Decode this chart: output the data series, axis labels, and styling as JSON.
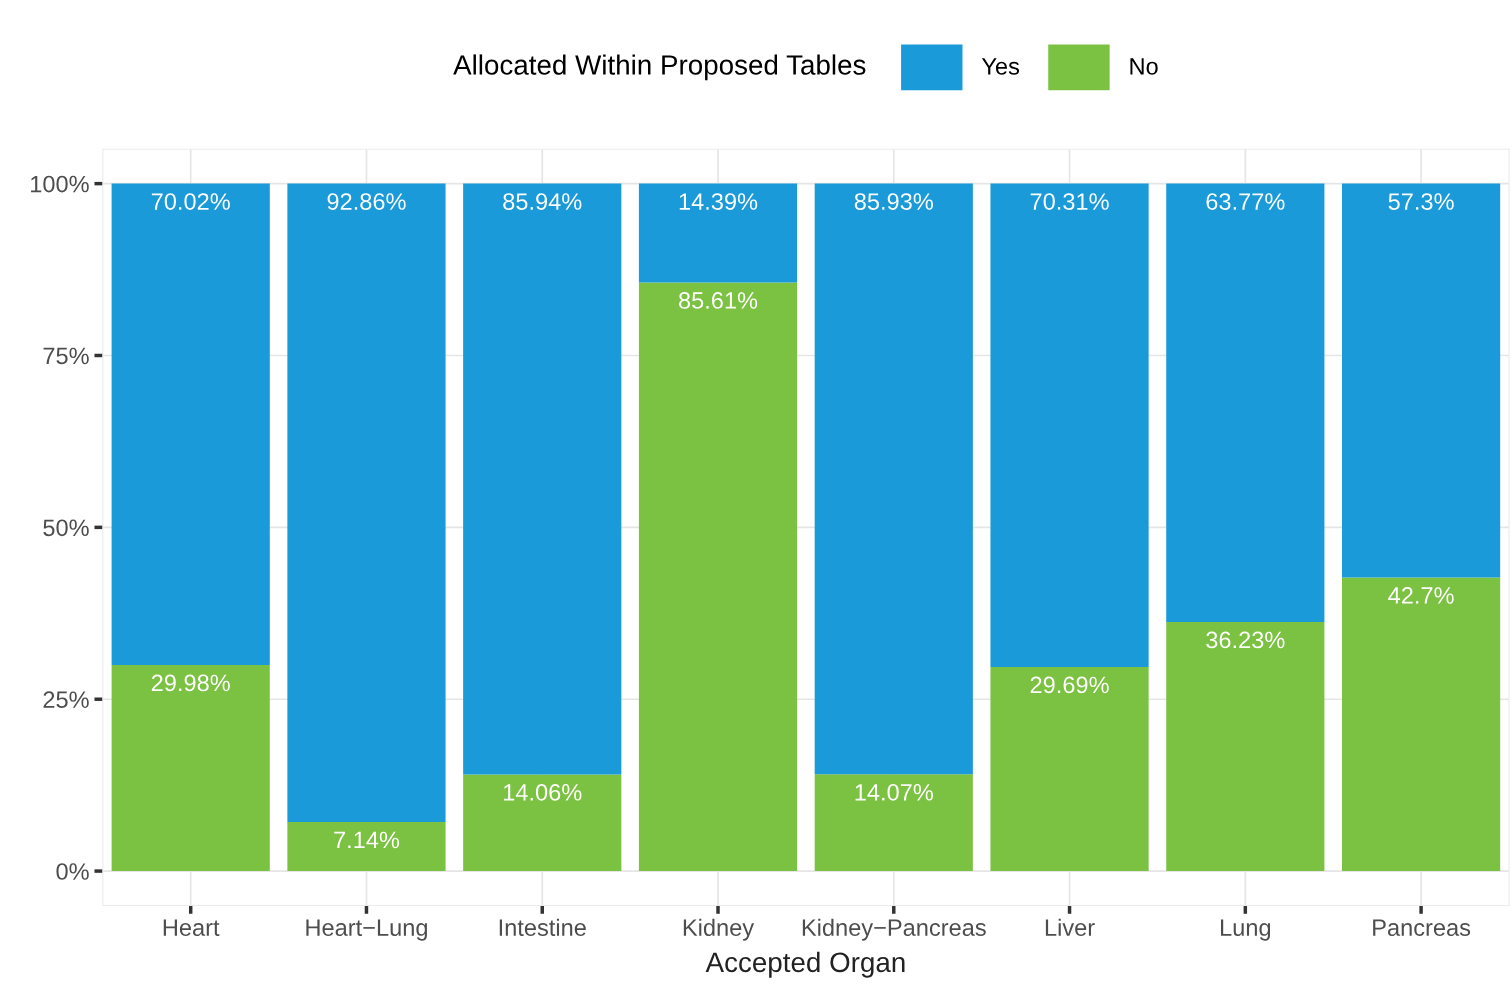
{
  "chart_data": {
    "type": "bar",
    "stacked": true,
    "xlabel": "Accepted Organ",
    "legend_title": "Allocated Within Proposed Tables",
    "legend": "top",
    "grid": true,
    "categories": [
      "Heart",
      "Heart−Lung",
      "Intestine",
      "Kidney",
      "Kidney−Pancreas",
      "Liver",
      "Lung",
      "Pancreas"
    ],
    "series": [
      {
        "name": "No",
        "color": "#7cc242",
        "values": [
          29.98,
          7.14,
          14.06,
          85.61,
          14.07,
          29.69,
          36.23,
          42.7
        ],
        "value_labels": [
          "29.98%",
          "7.14%",
          "14.06%",
          "85.61%",
          "14.07%",
          "29.69%",
          "36.23%",
          "42.7%"
        ]
      },
      {
        "name": "Yes",
        "color": "#1a9ad9",
        "values": [
          70.02,
          92.86,
          85.94,
          14.39,
          85.93,
          70.31,
          63.77,
          57.3
        ],
        "value_labels": [
          "70.02%",
          "92.86%",
          "85.94%",
          "14.39%",
          "85.93%",
          "70.31%",
          "63.77%",
          "57.3%"
        ]
      }
    ],
    "ylim": [
      -5,
      105
    ],
    "yticks": [
      {
        "value": 0,
        "label": "0%"
      },
      {
        "value": 25,
        "label": "25%"
      },
      {
        "value": 50,
        "label": "50%"
      },
      {
        "value": 75,
        "label": "75%"
      },
      {
        "value": 100,
        "label": "100%"
      }
    ]
  }
}
